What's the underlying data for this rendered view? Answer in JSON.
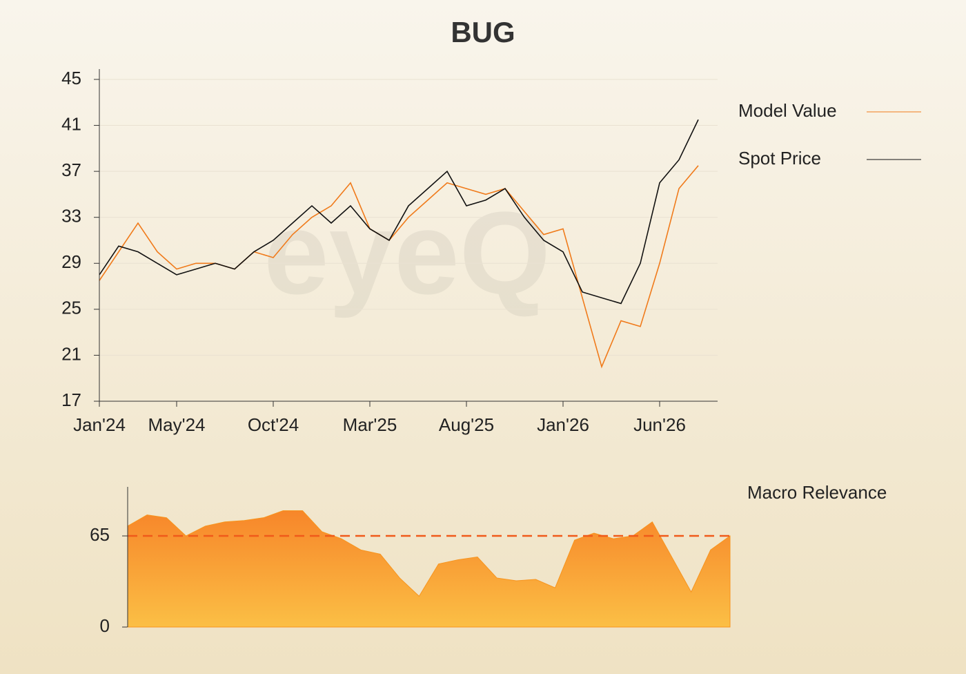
{
  "chart_data": [
    {
      "type": "line",
      "title": "BUG",
      "watermark": "eyeQ",
      "x": [
        "2024-01",
        "2024-02",
        "2024-03",
        "2024-04",
        "2024-05",
        "2024-06",
        "2024-07",
        "2024-08",
        "2024-09",
        "2024-10",
        "2024-11",
        "2024-12",
        "2025-01",
        "2025-02",
        "2025-03",
        "2025-04",
        "2025-05",
        "2025-06",
        "2025-07",
        "2025-08",
        "2025-09",
        "2025-10",
        "2025-11",
        "2025-12",
        "2026-01",
        "2026-02",
        "2026-03",
        "2026-04",
        "2026-05",
        "2026-06",
        "2026-07",
        "2026-08"
      ],
      "xlim": [
        "2024-01",
        "2026-09"
      ],
      "xticks": [
        {
          "value": "2024-01",
          "label": "Jan'24"
        },
        {
          "value": "2024-05",
          "label": "May'24"
        },
        {
          "value": "2024-10",
          "label": "Oct'24"
        },
        {
          "value": "2025-03",
          "label": "Mar'25"
        },
        {
          "value": "2025-08",
          "label": "Aug'25"
        },
        {
          "value": "2026-01",
          "label": "Jan'26"
        },
        {
          "value": "2026-06",
          "label": "Jun'26"
        }
      ],
      "ylim": [
        17,
        45.9
      ],
      "yticks": [
        17,
        21,
        25,
        29,
        33,
        37,
        41,
        45
      ],
      "grid": true,
      "series": [
        {
          "name": "Model Value",
          "color": "#f07a1a",
          "values": [
            27.5,
            30,
            32.5,
            30,
            28.5,
            29,
            29,
            28.5,
            30,
            29.5,
            31.5,
            33,
            34,
            36,
            32,
            31,
            33,
            34.5,
            36,
            35.5,
            35,
            35.5,
            33.5,
            31.5,
            32,
            26,
            20,
            24,
            23.5,
            29,
            35.5,
            37.5
          ]
        },
        {
          "name": "Spot Price",
          "color": "#111111",
          "values": [
            28,
            30.5,
            30,
            29,
            28,
            28.5,
            29,
            28.5,
            30,
            31,
            32.5,
            34,
            32.5,
            34,
            32,
            31,
            34,
            35.5,
            37,
            34,
            34.5,
            35.5,
            33,
            31,
            30,
            26.5,
            26,
            25.5,
            29,
            36,
            38,
            41.5
          ]
        }
      ]
    },
    {
      "type": "area",
      "ylim": [
        0,
        100
      ],
      "yticks": [
        0,
        65
      ],
      "threshold": 65,
      "x": [
        "2024-01",
        "2024-02",
        "2024-03",
        "2024-04",
        "2024-05",
        "2024-06",
        "2024-07",
        "2024-08",
        "2024-09",
        "2024-10",
        "2024-11",
        "2024-12",
        "2025-01",
        "2025-02",
        "2025-03",
        "2025-04",
        "2025-05",
        "2025-06",
        "2025-07",
        "2025-08",
        "2025-09",
        "2025-10",
        "2025-11",
        "2025-12",
        "2026-01",
        "2026-02",
        "2026-03",
        "2026-04",
        "2026-05",
        "2026-06",
        "2026-07",
        "2026-08"
      ],
      "xlim": [
        "2024-01",
        "2026-08"
      ],
      "series": [
        {
          "name": "Macro Relevance",
          "color": "#f7941d",
          "values": [
            72,
            80,
            78,
            65,
            72,
            75,
            76,
            78,
            83,
            83,
            68,
            63,
            55,
            52,
            35,
            22,
            45,
            48,
            50,
            35,
            33,
            34,
            28,
            62,
            67,
            63,
            65,
            75,
            50,
            25,
            55,
            65
          ]
        }
      ]
    }
  ]
}
